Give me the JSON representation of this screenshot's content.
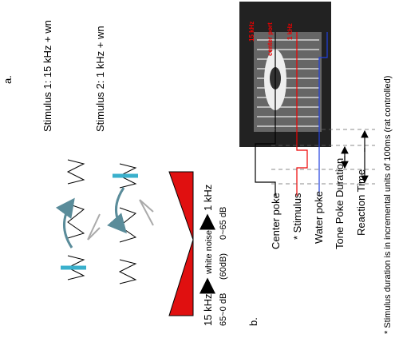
{
  "panel_a": {
    "label": "a.",
    "stimulus_1": "Stimulus 1: 15 kHz + wn",
    "stimulus_2": "Stimulus 2:  1 kHz + wn",
    "scale": {
      "left": "15 kHz",
      "middle": "white noise",
      "right": "1 kHz"
    },
    "levels": {
      "left": "65~0 dB",
      "middle": "(60dB)",
      "right": "0~65 dB"
    },
    "photo_labels": [
      "15 kHz",
      "center port",
      "1 kHz"
    ]
  },
  "panel_b": {
    "label": "b.",
    "legend": [
      "Center poke",
      "* Stimulus",
      "Water poke",
      "Tone Poke Duration",
      "Reaction Time"
    ],
    "footnote": "* Stimulus duration is in incremental units of 100ms (rat controlled)"
  }
}
